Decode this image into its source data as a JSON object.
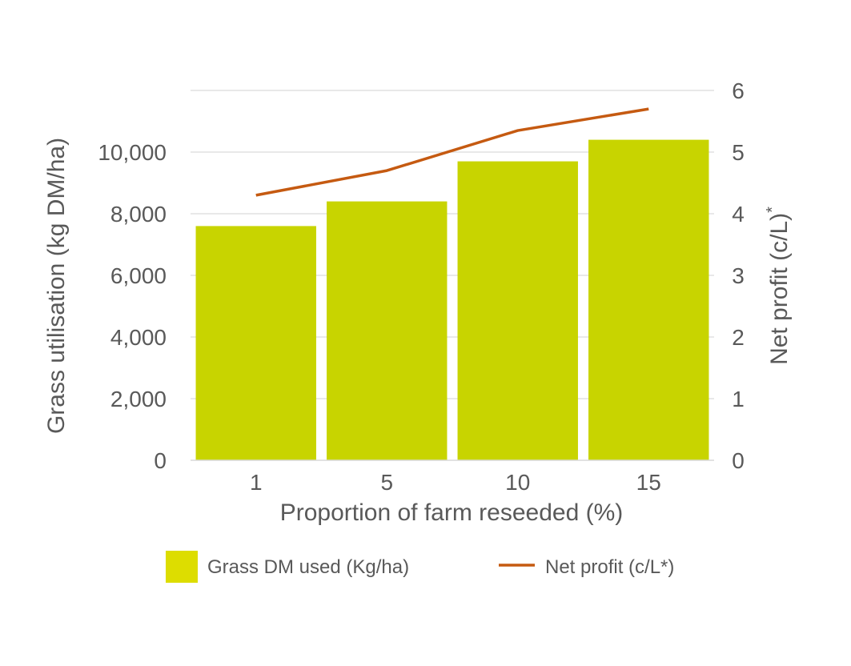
{
  "chart_data": {
    "type": "bar",
    "categories": [
      "1",
      "5",
      "10",
      "15"
    ],
    "series": [
      {
        "name": "Grass DM used (Kg/ha)",
        "type": "bar",
        "axis": "left",
        "color": "#c8d400",
        "values": [
          7600,
          8400,
          9700,
          10400
        ]
      },
      {
        "name": "Net profit (c/L*)",
        "type": "line",
        "axis": "right",
        "color": "#c55a11",
        "values": [
          4.3,
          4.7,
          5.35,
          5.7
        ]
      }
    ],
    "xlabel": "Proportion of farm reseeded (%)",
    "ylabel": "Grass utilisation (kg DM/ha)",
    "y2label": "Net profit (c/L)",
    "y2label_superscript": "*",
    "ylim": [
      0,
      12000
    ],
    "y2lim": [
      0,
      6
    ],
    "yticks": [
      "0",
      "2,000",
      "4,000",
      "6,000",
      "8,000",
      "10,000"
    ],
    "y2ticks": [
      "0",
      "1",
      "2",
      "3",
      "4",
      "5",
      "6"
    ],
    "grid": true,
    "legend": "bottom",
    "colors": {
      "grid": "#d9d9d9",
      "text": "#595959",
      "bar": "#c8d400",
      "legend_bar": "#dddd00",
      "line": "#c55a11"
    }
  }
}
